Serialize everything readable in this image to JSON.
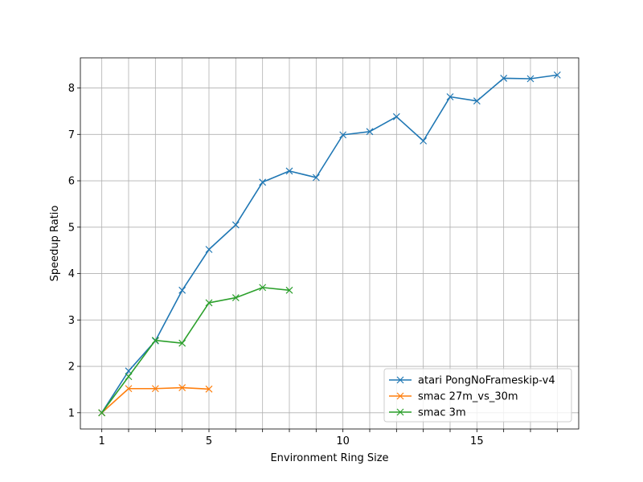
{
  "chart_data": {
    "type": "line",
    "xlabel": "Environment Ring Size",
    "ylabel": "Speedup Ratio",
    "xlim": [
      0.2,
      18.8
    ],
    "ylim": [
      0.65,
      8.65
    ],
    "xticks": [
      1,
      2,
      3,
      4,
      5,
      6,
      7,
      8,
      9,
      10,
      11,
      12,
      13,
      14,
      15,
      16,
      17,
      18
    ],
    "xtick_labels": [
      "1",
      "",
      "",
      "",
      "5",
      "",
      "",
      "",
      "",
      "10",
      "",
      "",
      "",
      "",
      "15",
      "",
      "",
      ""
    ],
    "yticks": [
      1,
      2,
      3,
      4,
      5,
      6,
      7,
      8
    ],
    "ytick_labels": [
      "1",
      "2",
      "3",
      "4",
      "5",
      "6",
      "7",
      "8"
    ],
    "grid": true,
    "legend_position": "lower-right",
    "series": [
      {
        "name": "atari PongNoFrameskip-v4",
        "color": "#1f77b4",
        "x": [
          1,
          2,
          3,
          4,
          5,
          6,
          7,
          8,
          9,
          10,
          11,
          12,
          13,
          14,
          15,
          16,
          17,
          18
        ],
        "y": [
          1.0,
          1.9,
          2.55,
          3.64,
          4.52,
          5.05,
          5.97,
          6.21,
          6.07,
          6.99,
          7.06,
          7.38,
          6.86,
          7.81,
          7.72,
          8.21,
          8.2,
          8.28
        ]
      },
      {
        "name": "smac 27m_vs_30m",
        "color": "#ff7f0e",
        "x": [
          1,
          2,
          3,
          4,
          5
        ],
        "y": [
          1.0,
          1.52,
          1.52,
          1.54,
          1.51
        ]
      },
      {
        "name": "smac 3m",
        "color": "#2ca02c",
        "x": [
          1,
          2,
          3,
          4,
          5,
          6,
          7,
          8
        ],
        "y": [
          1.0,
          1.78,
          2.56,
          2.5,
          3.37,
          3.48,
          3.7,
          3.64
        ]
      }
    ]
  }
}
